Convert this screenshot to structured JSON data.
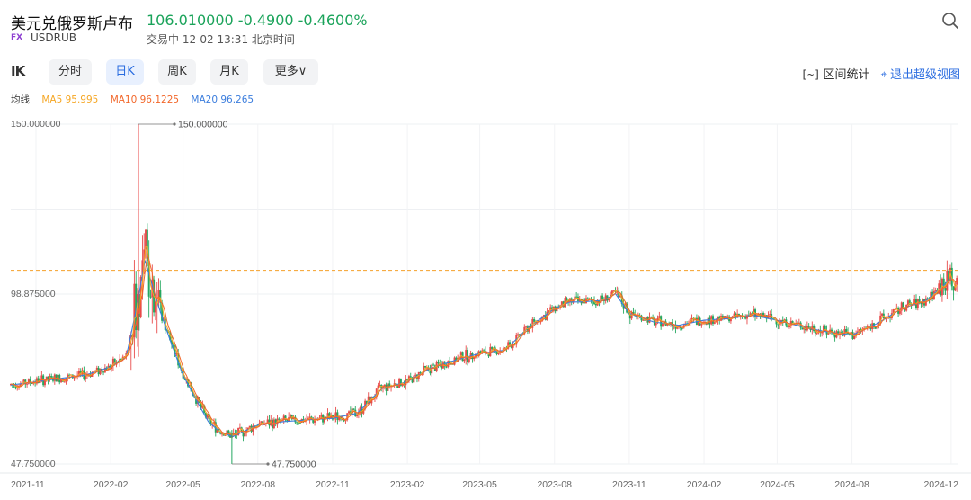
{
  "header": {
    "title": "美元兑俄罗斯卢布",
    "quote": "106.010000 -0.4900 -0.4600%",
    "fx_badge": "FX",
    "symbol": "USDRUB",
    "trade_status": "交易中 12-02 13:31 北京时间",
    "search_icon": "search-icon"
  },
  "toolbar": {
    "panel_icon_text": "IK",
    "tabs": [
      {
        "label": "分时",
        "active": false
      },
      {
        "label": "日K",
        "active": true
      },
      {
        "label": "周K",
        "active": false
      },
      {
        "label": "月K",
        "active": false
      },
      {
        "label": "更多∨",
        "active": false
      }
    ],
    "stats_icon": "[~]",
    "stats_label": "区间统计",
    "super_icon": "⌖",
    "super_label": "退出超级视图"
  },
  "ma": {
    "title": "均线",
    "ma5": "MA5 95.995",
    "ma10": "MA10 96.1225",
    "ma20": "MA20 96.265"
  },
  "colors": {
    "up": "#e84b4b",
    "down": "#24a860",
    "ma5": "#f5a623",
    "ma10": "#f2672a",
    "ma20": "#3b7ddd",
    "current_line": "#f5a02a",
    "accent": "#2b6de0"
  },
  "chart_data": {
    "type": "line",
    "title": "",
    "xlabel": "",
    "ylabel": "",
    "y_tick_labels": [
      "150.000000",
      "98.875000",
      "47.750000"
    ],
    "ylim": [
      47.75,
      150
    ],
    "x_tick_labels": [
      "2021-11",
      "2022-02",
      "2022-05",
      "2022-08",
      "2022-11",
      "2023-02",
      "2023-05",
      "2023-08",
      "2023-11",
      "2024-02",
      "2024-05",
      "2024-08",
      "2024-12"
    ],
    "annotations": [
      {
        "text": "150.000000",
        "x": "2022-03-07",
        "y": 150.0
      },
      {
        "text": "47.750000",
        "x": "2022-06-30",
        "y": 47.75
      }
    ],
    "current_price": 106.01,
    "series": [
      {
        "name": "MA20",
        "x": [
          "2021-10-01",
          "2021-11-01",
          "2021-12-01",
          "2022-01-01",
          "2022-02-01",
          "2022-02-20",
          "2022-03-05",
          "2022-03-15",
          "2022-04-01",
          "2022-04-15",
          "2022-05-01",
          "2022-05-15",
          "2022-06-01",
          "2022-06-15",
          "2022-07-01",
          "2022-08-01",
          "2022-09-01",
          "2022-10-01",
          "2022-11-01",
          "2022-12-01",
          "2023-01-01",
          "2023-02-01",
          "2023-03-01",
          "2023-04-01",
          "2023-05-01",
          "2023-06-01",
          "2023-07-01",
          "2023-08-01",
          "2023-08-20",
          "2023-09-01",
          "2023-10-01",
          "2023-10-15",
          "2023-11-01",
          "2023-12-01",
          "2024-01-01",
          "2024-02-01",
          "2024-03-01",
          "2024-04-01",
          "2024-05-01",
          "2024-06-01",
          "2024-07-01",
          "2024-08-01",
          "2024-09-01",
          "2024-10-01",
          "2024-11-01",
          "2024-12-01"
        ],
        "y": [
          71.5,
          72.5,
          73.5,
          74.5,
          77.0,
          80.0,
          95.0,
          109.0,
          95.0,
          85.0,
          74.5,
          68.0,
          60.5,
          57.5,
          56.0,
          59.5,
          60.5,
          61.0,
          61.5,
          63.0,
          70.5,
          72.5,
          76.5,
          79.0,
          81.0,
          82.0,
          89.0,
          94.5,
          96.5,
          96.5,
          97.0,
          99.0,
          93.0,
          90.5,
          89.5,
          91.0,
          91.5,
          92.5,
          91.0,
          89.0,
          87.5,
          86.5,
          90.0,
          94.5,
          97.0,
          103.5
        ]
      }
    ]
  }
}
